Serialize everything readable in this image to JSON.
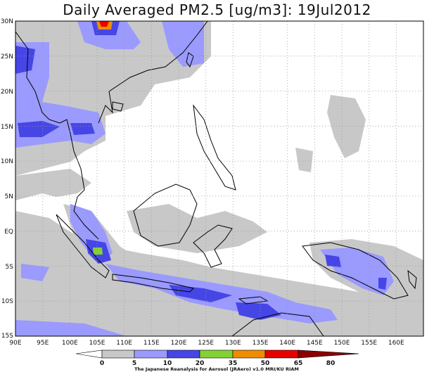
{
  "title": "Daily Averaged PM2.5 [ug/m3]: 19Jul2012",
  "lat_labels": [
    "30N",
    "25N",
    "20N",
    "15N",
    "10N",
    "5N",
    "EQ",
    "5S",
    "10S",
    "15S"
  ],
  "lon_labels": [
    "90E",
    "95E",
    "100E",
    "105E",
    "110E",
    "115E",
    "120E",
    "125E",
    "130E",
    "135E",
    "140E",
    "145E",
    "150E",
    "155E",
    "160E"
  ],
  "colorbar": {
    "ticks": [
      "0",
      "5",
      "10",
      "20",
      "35",
      "50",
      "65",
      "80"
    ],
    "colors": [
      "#ffffff",
      "#c8c8c8",
      "#9a9aff",
      "#4646e6",
      "#82d232",
      "#f08c00",
      "#e60000",
      "#8c0000"
    ],
    "credit": "The Japanese Reanalysis for Aerosol (JRAero) v1.0 MRI/KU RIAM"
  }
}
